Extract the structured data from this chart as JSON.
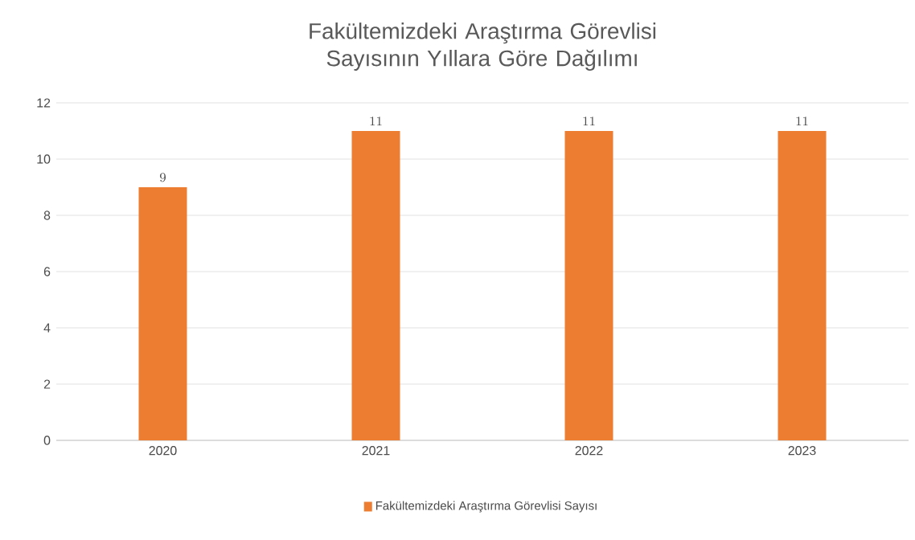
{
  "chart_data": {
    "type": "bar",
    "title": "Fakültemizdeki Araştırma Görevlisi Sayısının Yıllara Göre Dağılımı",
    "categories": [
      "2020",
      "2021",
      "2022",
      "2023"
    ],
    "series": [
      {
        "name": "Fakültemizdeki Araştırma Görevlisi Sayısı",
        "color": "#ed7d31",
        "values": [
          9,
          11,
          11,
          11
        ]
      }
    ],
    "ylim": [
      0,
      12
    ],
    "yticks": [
      0,
      2,
      4,
      6,
      8,
      10,
      12
    ],
    "grid": "y",
    "legend": "bottom",
    "data_labels": true
  }
}
